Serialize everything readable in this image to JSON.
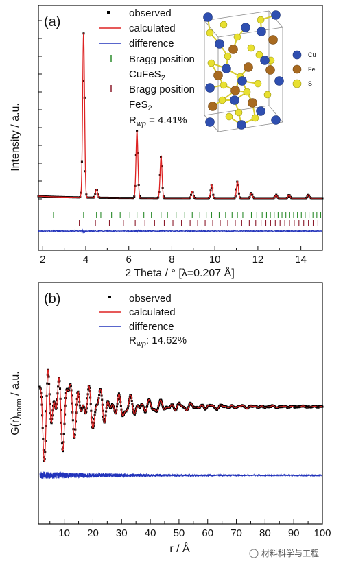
{
  "chart_data": [
    {
      "panel": "(a)",
      "type": "line",
      "xlabel": "2 Theta / ° [λ=0.207 Å]",
      "ylabel": "Intensity / a.u.",
      "xlim": [
        1.8,
        15
      ],
      "ylim_relative": [
        0,
        1
      ],
      "x_ticks": [
        "2",
        "4",
        "6",
        "8",
        "10",
        "12",
        "14"
      ],
      "x_tick_values": [
        2,
        4,
        6,
        8,
        10,
        12,
        14
      ],
      "grid": false,
      "legend_position": "top-center",
      "legend": [
        "observed",
        "calculated",
        "difference",
        "Bragg position",
        "CuFeS",
        "Bragg position",
        "FeS"
      ],
      "legend_subscript": "2",
      "r_label": "R",
      "r_sub": "wp",
      "r_value": " = 4.41%",
      "series": [
        {
          "name": "observed",
          "color": "#000000"
        },
        {
          "name": "calculated",
          "color": "#dd2222"
        },
        {
          "name": "difference",
          "color": "#2233bb"
        },
        {
          "name": "Bragg position CuFeS2",
          "color": "#2a8a2a"
        },
        {
          "name": "Bragg position FeS2",
          "color": "#8b1a2a"
        }
      ],
      "peaks": [
        {
          "x": 3.9,
          "height": 0.98
        },
        {
          "x": 4.5,
          "height": 0.05
        },
        {
          "x": 6.38,
          "height": 0.4
        },
        {
          "x": 7.5,
          "height": 0.25
        },
        {
          "x": 8.95,
          "height": 0.04
        },
        {
          "x": 9.85,
          "height": 0.08
        },
        {
          "x": 11.05,
          "height": 0.1
        },
        {
          "x": 11.7,
          "height": 0.03
        },
        {
          "x": 12.85,
          "height": 0.02
        },
        {
          "x": 13.45,
          "height": 0.02
        },
        {
          "x": 14.35,
          "height": 0.02
        }
      ],
      "structure_legend": [
        {
          "label": "Cu",
          "color": "#2f4fb0"
        },
        {
          "label": "Fe",
          "color": "#a86a20"
        },
        {
          "label": "S",
          "color": "#e8e030"
        }
      ]
    },
    {
      "panel": "(b)",
      "type": "line",
      "xlabel": "r / Å",
      "ylabel": "G(r)",
      "ylabel_sub": "norm",
      "ylabel_suffix": " / a.u.",
      "xlim": [
        1,
        100
      ],
      "x_ticks": [
        "10",
        "20",
        "30",
        "40",
        "50",
        "60",
        "70",
        "80",
        "90",
        "100"
      ],
      "x_tick_values": [
        10,
        20,
        30,
        40,
        50,
        60,
        70,
        80,
        90,
        100
      ],
      "grid": false,
      "legend_position": "top-center",
      "legend": [
        "observed",
        "calculated",
        "difference"
      ],
      "r_label": "R",
      "r_sub": "wp",
      "r_value": ": 14.62%",
      "series": [
        {
          "name": "observed",
          "color": "#000000"
        },
        {
          "name": "calculated",
          "color": "#dd2222"
        },
        {
          "name": "difference",
          "color": "#2233bb"
        }
      ]
    }
  ],
  "watermark": "材料科学与工程"
}
